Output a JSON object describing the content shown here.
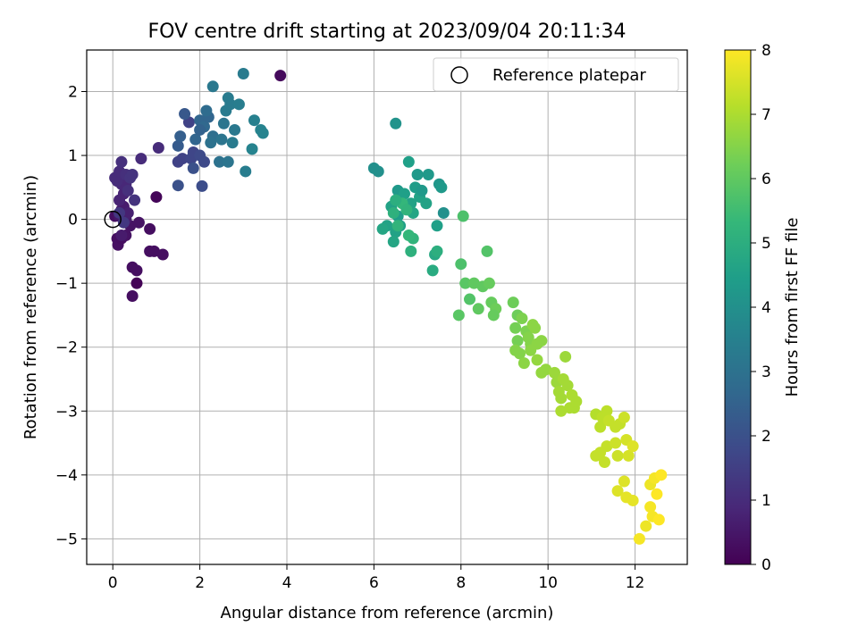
{
  "chart_data": {
    "type": "scatter",
    "title": "FOV centre drift starting at 2023/09/04 20:11:34",
    "xlabel": "Angular distance from reference (arcmin)",
    "ylabel": "Rotation from reference (arcmin)",
    "xlim": [
      -0.6,
      13.2
    ],
    "ylim": [
      -5.4,
      2.65
    ],
    "xticks": [
      0,
      2,
      4,
      6,
      8,
      10,
      12
    ],
    "yticks": [
      -5,
      -4,
      -3,
      -2,
      -1,
      0,
      1,
      2
    ],
    "grid": true,
    "legend": {
      "placement": "top-right",
      "entries": [
        "Reference platepar"
      ]
    },
    "reference_point": {
      "x": 0,
      "y": 0
    },
    "colorbar": {
      "label": "Hours from first FF file",
      "range": [
        0,
        8
      ],
      "ticks": [
        0,
        1,
        2,
        3,
        4,
        5,
        6,
        7,
        8
      ],
      "colormap": "viridis"
    },
    "points": [
      [
        0.55,
        -1.0,
        0.05
      ],
      [
        1.0,
        0.35,
        0.1
      ],
      [
        0.05,
        0.05,
        0.3
      ],
      [
        0.1,
        -0.3,
        0.3
      ],
      [
        0.12,
        -0.4,
        0.35
      ],
      [
        0.2,
        -0.3,
        0.3
      ],
      [
        0.3,
        -0.25,
        0.4
      ],
      [
        0.4,
        -0.1,
        0.4
      ],
      [
        0.45,
        -0.75,
        0.3
      ],
      [
        0.55,
        -0.8,
        0.3
      ],
      [
        0.45,
        -1.2,
        0.3
      ],
      [
        0.6,
        -0.05,
        0.4
      ],
      [
        0.85,
        -0.15,
        0.3
      ],
      [
        0.85,
        -0.5,
        0.3
      ],
      [
        0.95,
        -0.5,
        0.3
      ],
      [
        1.15,
        -0.55,
        0.3
      ],
      [
        0.15,
        0.05,
        0.5
      ],
      [
        0.2,
        0.15,
        0.6
      ],
      [
        0.25,
        0.2,
        0.6
      ],
      [
        0.3,
        0.0,
        0.6
      ],
      [
        0.2,
        -0.25,
        0.6
      ],
      [
        0.35,
        0.1,
        0.7
      ],
      [
        0.15,
        0.3,
        0.8
      ],
      [
        0.25,
        0.4,
        0.8
      ],
      [
        0.3,
        0.55,
        0.9
      ],
      [
        0.2,
        0.55,
        0.9
      ],
      [
        0.1,
        0.6,
        1.0
      ],
      [
        0.05,
        0.65,
        1.0
      ],
      [
        0.15,
        0.75,
        1.0
      ],
      [
        0.2,
        0.9,
        1.1
      ],
      [
        0.3,
        0.7,
        1.1
      ],
      [
        0.4,
        0.65,
        1.2
      ],
      [
        0.45,
        0.7,
        1.2
      ],
      [
        0.35,
        0.45,
        1.1
      ],
      [
        0.5,
        0.3,
        1.2
      ],
      [
        0.65,
        0.95,
        1.0
      ],
      [
        1.05,
        1.12,
        1.0
      ],
      [
        0.15,
        0.1,
        1.3
      ],
      [
        0.25,
        -0.05,
        1.3
      ],
      [
        1.5,
        0.9,
        1.6
      ],
      [
        1.6,
        0.95,
        1.6
      ],
      [
        1.8,
        0.95,
        1.7
      ],
      [
        1.85,
        1.05,
        1.7
      ],
      [
        2.0,
        1.0,
        1.8
      ],
      [
        2.1,
        0.9,
        1.8
      ],
      [
        2.05,
        0.52,
        1.9
      ],
      [
        1.5,
        0.53,
        2.0
      ],
      [
        1.85,
        0.8,
        2.0
      ],
      [
        1.75,
        1.52,
        1.6
      ],
      [
        1.65,
        1.65,
        2.2
      ],
      [
        1.5,
        1.15,
        2.3
      ],
      [
        1.55,
        1.3,
        2.4
      ],
      [
        1.9,
        1.25,
        2.6
      ],
      [
        2.0,
        1.55,
        2.6
      ],
      [
        2.1,
        1.45,
        2.7
      ],
      [
        2.2,
        1.6,
        2.6
      ],
      [
        2.15,
        1.7,
        2.8
      ],
      [
        2.0,
        1.4,
        2.5
      ],
      [
        2.3,
        1.3,
        2.9
      ],
      [
        2.25,
        1.2,
        3.0
      ],
      [
        2.3,
        2.08,
        3.2
      ],
      [
        2.45,
        0.9,
        3.0
      ],
      [
        2.5,
        1.25,
        3.1
      ],
      [
        2.55,
        1.5,
        3.1
      ],
      [
        2.6,
        1.7,
        3.3
      ],
      [
        2.65,
        1.9,
        3.3
      ],
      [
        2.7,
        1.8,
        3.3
      ],
      [
        2.8,
        1.4,
        3.2
      ],
      [
        2.75,
        1.2,
        3.3
      ],
      [
        2.65,
        0.9,
        3.1
      ],
      [
        2.9,
        1.8,
        3.4
      ],
      [
        3.0,
        2.28,
        3.3
      ],
      [
        3.05,
        0.75,
        3.4
      ],
      [
        3.2,
        1.1,
        3.6
      ],
      [
        3.25,
        1.55,
        3.5
      ],
      [
        3.4,
        1.4,
        3.6
      ],
      [
        3.45,
        1.35,
        3.6
      ],
      [
        3.85,
        2.25,
        0.2
      ],
      [
        6.0,
        0.8,
        4.0
      ],
      [
        6.1,
        0.75,
        4.0
      ],
      [
        6.5,
        1.5,
        4.1
      ],
      [
        6.55,
        0.45,
        4.3
      ],
      [
        6.6,
        0.3,
        4.3
      ],
      [
        6.55,
        0.05,
        4.4
      ],
      [
        6.6,
        -0.1,
        4.5
      ],
      [
        6.5,
        -0.2,
        4.6
      ],
      [
        6.45,
        -0.35,
        4.7
      ],
      [
        6.3,
        -0.1,
        4.6
      ],
      [
        6.2,
        -0.15,
        4.7
      ],
      [
        6.4,
        0.2,
        4.6
      ],
      [
        6.7,
        0.4,
        4.5
      ],
      [
        6.8,
        0.9,
        4.5
      ],
      [
        6.85,
        0.25,
        4.6
      ],
      [
        6.9,
        0.1,
        4.7
      ],
      [
        6.95,
        0.5,
        4.4
      ],
      [
        7.0,
        0.7,
        4.3
      ],
      [
        7.05,
        0.35,
        4.6
      ],
      [
        7.1,
        0.45,
        4.3
      ],
      [
        7.2,
        0.25,
        4.6
      ],
      [
        7.25,
        0.7,
        4.3
      ],
      [
        7.5,
        0.55,
        4.2
      ],
      [
        7.55,
        0.5,
        4.3
      ],
      [
        7.6,
        0.1,
        4.0
      ],
      [
        7.45,
        -0.1,
        4.5
      ],
      [
        7.4,
        -0.55,
        4.8
      ],
      [
        7.35,
        -0.8,
        4.9
      ],
      [
        7.45,
        -0.5,
        5.0
      ],
      [
        6.85,
        -0.5,
        5.1
      ],
      [
        6.9,
        -0.3,
        5.2
      ],
      [
        6.8,
        -0.25,
        5.3
      ],
      [
        6.65,
        0.25,
        5.3
      ],
      [
        6.75,
        0.15,
        5.2
      ],
      [
        6.5,
        0.3,
        5.0
      ],
      [
        6.45,
        0.1,
        5.1
      ],
      [
        6.55,
        -0.1,
        5.2
      ],
      [
        8.05,
        0.05,
        5.7
      ],
      [
        8.0,
        -0.7,
        5.7
      ],
      [
        8.6,
        -0.5,
        5.8
      ],
      [
        7.95,
        -1.5,
        5.9
      ],
      [
        8.2,
        -1.25,
        5.8
      ],
      [
        8.1,
        -1.0,
        5.9
      ],
      [
        8.3,
        -1.0,
        6.0
      ],
      [
        8.4,
        -1.4,
        6.0
      ],
      [
        8.5,
        -1.05,
        6.0
      ],
      [
        8.65,
        -1.0,
        6.1
      ],
      [
        8.7,
        -1.3,
        6.1
      ],
      [
        8.8,
        -1.4,
        6.2
      ],
      [
        8.75,
        -1.5,
        6.1
      ],
      [
        9.2,
        -1.3,
        6.2
      ],
      [
        9.3,
        -1.5,
        6.2
      ],
      [
        9.25,
        -1.7,
        6.3
      ],
      [
        9.3,
        -1.9,
        6.3
      ],
      [
        9.4,
        -1.55,
        6.4
      ],
      [
        9.5,
        -1.75,
        6.4
      ],
      [
        9.55,
        -1.85,
        6.5
      ],
      [
        9.6,
        -1.95,
        6.5
      ],
      [
        9.65,
        -1.65,
        6.6
      ],
      [
        9.7,
        -1.7,
        6.6
      ],
      [
        9.75,
        -1.95,
        6.6
      ],
      [
        9.85,
        -1.9,
        6.6
      ],
      [
        9.25,
        -2.05,
        6.5
      ],
      [
        9.35,
        -2.1,
        6.5
      ],
      [
        9.45,
        -2.25,
        6.6
      ],
      [
        9.6,
        -2.05,
        6.6
      ],
      [
        9.75,
        -2.2,
        6.7
      ],
      [
        9.85,
        -2.4,
        6.7
      ],
      [
        9.95,
        -2.35,
        6.7
      ],
      [
        10.15,
        -2.4,
        6.8
      ],
      [
        10.2,
        -2.55,
        6.8
      ],
      [
        10.25,
        -2.7,
        6.9
      ],
      [
        10.35,
        -2.5,
        6.9
      ],
      [
        10.4,
        -2.15,
        6.8
      ],
      [
        10.3,
        -2.8,
        6.9
      ],
      [
        10.3,
        -3.0,
        7.0
      ],
      [
        10.45,
        -2.6,
        6.9
      ],
      [
        10.5,
        -2.95,
        7.0
      ],
      [
        10.55,
        -2.75,
        7.0
      ],
      [
        10.6,
        -2.95,
        7.0
      ],
      [
        10.65,
        -2.85,
        7.0
      ],
      [
        11.1,
        -3.05,
        7.1
      ],
      [
        11.2,
        -3.25,
        7.2
      ],
      [
        11.25,
        -3.1,
        7.2
      ],
      [
        11.35,
        -3.0,
        7.2
      ],
      [
        11.4,
        -3.15,
        7.3
      ],
      [
        11.55,
        -3.25,
        7.3
      ],
      [
        11.65,
        -3.2,
        7.3
      ],
      [
        11.75,
        -3.1,
        7.4
      ],
      [
        11.1,
        -3.7,
        7.3
      ],
      [
        11.2,
        -3.65,
        7.3
      ],
      [
        11.3,
        -3.8,
        7.3
      ],
      [
        11.35,
        -3.55,
        7.3
      ],
      [
        11.55,
        -3.5,
        7.4
      ],
      [
        11.6,
        -3.7,
        7.4
      ],
      [
        11.8,
        -3.45,
        7.5
      ],
      [
        11.85,
        -3.7,
        7.5
      ],
      [
        11.6,
        -4.25,
        7.6
      ],
      [
        11.75,
        -4.1,
        7.6
      ],
      [
        11.8,
        -4.35,
        7.7
      ],
      [
        11.95,
        -4.4,
        7.7
      ],
      [
        11.95,
        -3.55,
        7.6
      ],
      [
        12.1,
        -5.0,
        7.9
      ],
      [
        12.25,
        -4.8,
        7.8
      ],
      [
        12.35,
        -4.15,
        7.8
      ],
      [
        12.35,
        -4.5,
        7.9
      ],
      [
        12.4,
        -4.65,
        7.9
      ],
      [
        12.45,
        -4.05,
        7.9
      ],
      [
        12.5,
        -4.3,
        8.0
      ],
      [
        12.55,
        -4.7,
        8.0
      ],
      [
        12.6,
        -4.0,
        8.0
      ]
    ]
  }
}
